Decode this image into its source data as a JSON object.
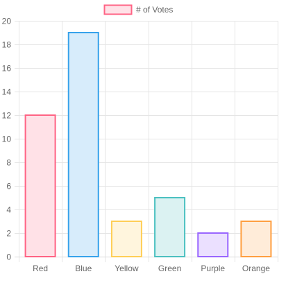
{
  "chart_data": {
    "type": "bar",
    "categories": [
      "Red",
      "Blue",
      "Yellow",
      "Green",
      "Purple",
      "Orange"
    ],
    "series": [
      {
        "name": "# of Votes",
        "values": [
          12,
          19,
          3,
          5,
          2,
          3
        ]
      }
    ],
    "ylim": [
      0,
      20
    ],
    "yticks": [
      0,
      2,
      4,
      6,
      8,
      10,
      12,
      14,
      16,
      18,
      20
    ],
    "grid": true,
    "legend": "top-center",
    "bar_colors": {
      "fill": [
        "#FFE1E7",
        "#D7ECFB",
        "#FFF5DD",
        "#DBF2F2",
        "#EBE0FF",
        "#FFECD9"
      ],
      "stroke": [
        "#FF6384",
        "#36A2EB",
        "#FFCE56",
        "#4BC0C0",
        "#9966FF",
        "#FF9F40"
      ]
    },
    "gridline_color": "#e5e5e5",
    "text_color": "#666666"
  }
}
